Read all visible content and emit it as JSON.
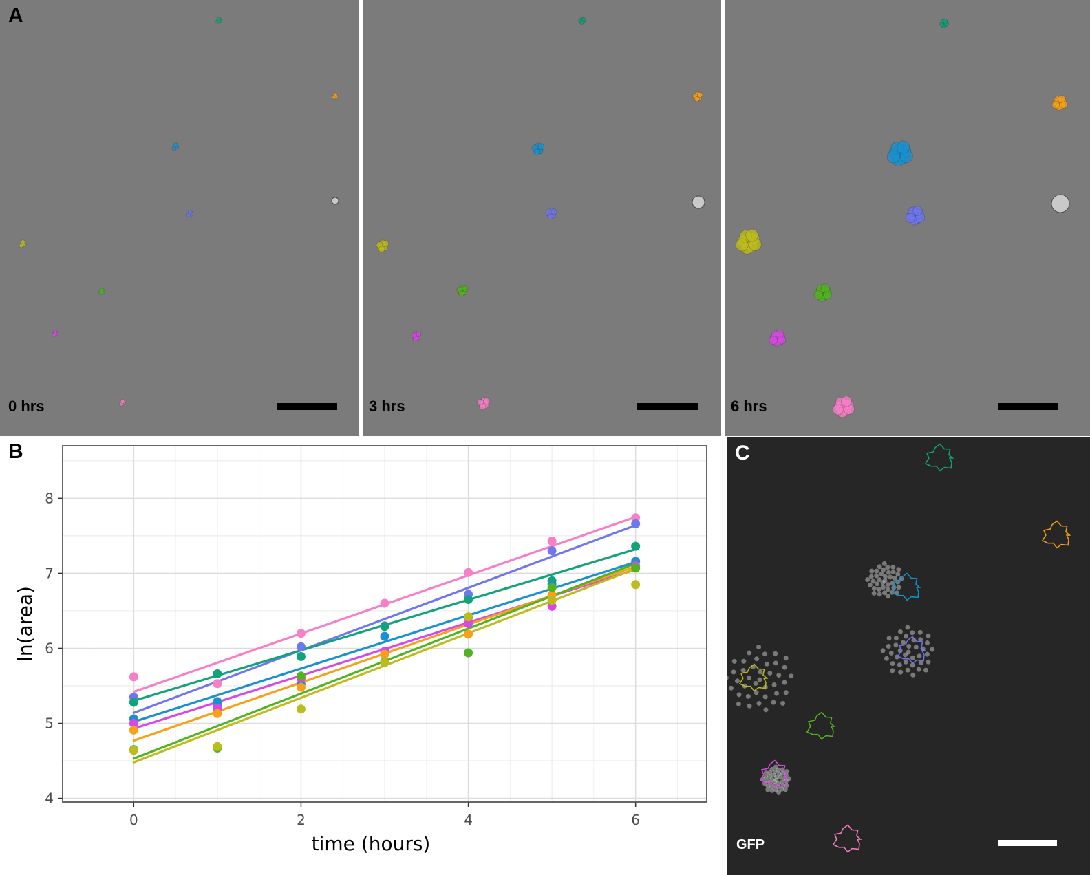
{
  "panels": {
    "a": {
      "letter": "A",
      "frames": [
        {
          "time_label": "0 hrs"
        },
        {
          "time_label": "3 hrs"
        },
        {
          "time_label": "6 hrs"
        }
      ]
    },
    "b": {
      "letter": "B"
    },
    "c": {
      "letter": "C",
      "channel_label": "GFP"
    }
  },
  "chart_data": {
    "type": "scatter",
    "title": "",
    "xlabel": "time (hours)",
    "ylabel": "ln(area)",
    "xlim": [
      -0.85,
      6.85
    ],
    "ylim": [
      3.95,
      8.7
    ],
    "x_ticks": [
      0,
      2,
      4,
      6
    ],
    "y_ticks": [
      4,
      5,
      6,
      7,
      8
    ],
    "grid": true,
    "legend": "none",
    "x": [
      0,
      1,
      2,
      3,
      4,
      5,
      6
    ],
    "series": [
      {
        "color": "#f77fc6",
        "values": [
          5.62,
          5.53,
          6.2,
          6.6,
          7.01,
          7.43,
          7.74
        ],
        "fit": [
          5.42,
          7.75
        ]
      },
      {
        "color": "#6e77ee",
        "values": [
          5.35,
          5.24,
          6.02,
          6.3,
          6.72,
          7.3,
          7.66
        ],
        "fit": [
          5.14,
          7.64
        ]
      },
      {
        "color": "#12a37b",
        "values": [
          5.28,
          5.66,
          5.89,
          6.29,
          6.65,
          6.9,
          7.36
        ],
        "fit": [
          5.3,
          7.32
        ]
      },
      {
        "color": "#1891cf",
        "values": [
          5.06,
          5.29,
          5.52,
          6.16,
          6.41,
          6.85,
          7.16
        ],
        "fit": [
          5.02,
          7.15
        ]
      },
      {
        "color": "#d64ae3",
        "values": [
          5.0,
          5.2,
          5.6,
          5.96,
          6.33,
          6.56,
          7.1
        ],
        "fit": [
          4.93,
          7.05
        ]
      },
      {
        "color": "#f6a11a",
        "values": [
          4.91,
          5.13,
          5.48,
          5.92,
          6.19,
          6.71,
          7.07
        ],
        "fit": [
          4.77,
          7.09
        ]
      },
      {
        "color": "#52b320",
        "values": [
          4.65,
          4.67,
          5.63,
          5.82,
          5.94,
          6.81,
          7.07
        ],
        "fit": [
          4.53,
          7.13
        ]
      },
      {
        "color": "#bdbc1d",
        "values": [
          4.64,
          4.69,
          5.19,
          5.81,
          6.42,
          6.64,
          6.85
        ],
        "fit": [
          4.48,
          7.06
        ]
      }
    ]
  },
  "colors": {
    "pink": "#f77fc6",
    "blue_violet": "#6e77ee",
    "teal": "#12a37b",
    "sky": "#1891cf",
    "magenta": "#d64ae3",
    "orange": "#f6a11a",
    "green": "#52b320",
    "olive": "#bdbc1d"
  }
}
